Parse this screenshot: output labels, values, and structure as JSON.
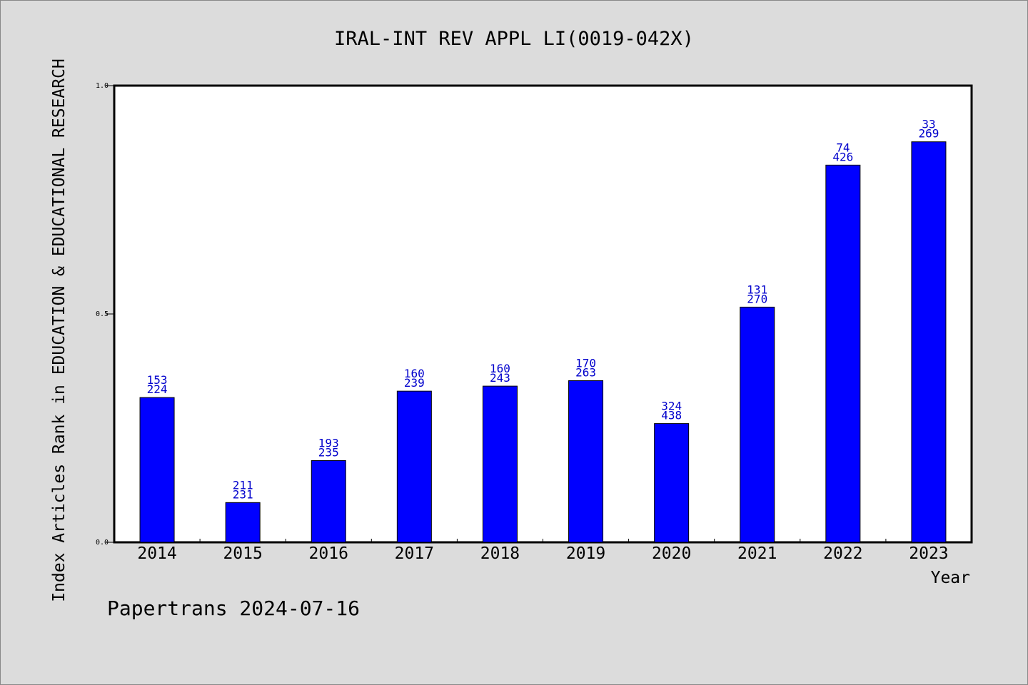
{
  "chart_data": {
    "type": "bar",
    "title": "IRAL-INT REV APPL LI(0019-042X)",
    "ylabel": "Index Articles Rank in EDUCATION & EDUCATIONAL RESEARCH",
    "xlabel": "Year",
    "ylim": [
      0,
      1.0
    ],
    "yticks": [
      "0.0",
      "0.5",
      "1.0"
    ],
    "categories": [
      "2014",
      "2015",
      "2016",
      "2017",
      "2018",
      "2019",
      "2020",
      "2021",
      "2022",
      "2023"
    ],
    "values": [
      0.317,
      0.087,
      0.179,
      0.331,
      0.342,
      0.354,
      0.26,
      0.515,
      0.826,
      0.877
    ],
    "label_top": [
      "153",
      "211",
      "193",
      "160",
      "160",
      "170",
      "324",
      "131",
      "74",
      "33"
    ],
    "label_bottom": [
      "224",
      "231",
      "235",
      "239",
      "243",
      "263",
      "438",
      "270",
      "426",
      "269"
    ],
    "bar_color": "#0000ff",
    "label_color": "#0000cc",
    "grid": false
  },
  "footer": {
    "text": "Papertrans 2024-07-16"
  }
}
